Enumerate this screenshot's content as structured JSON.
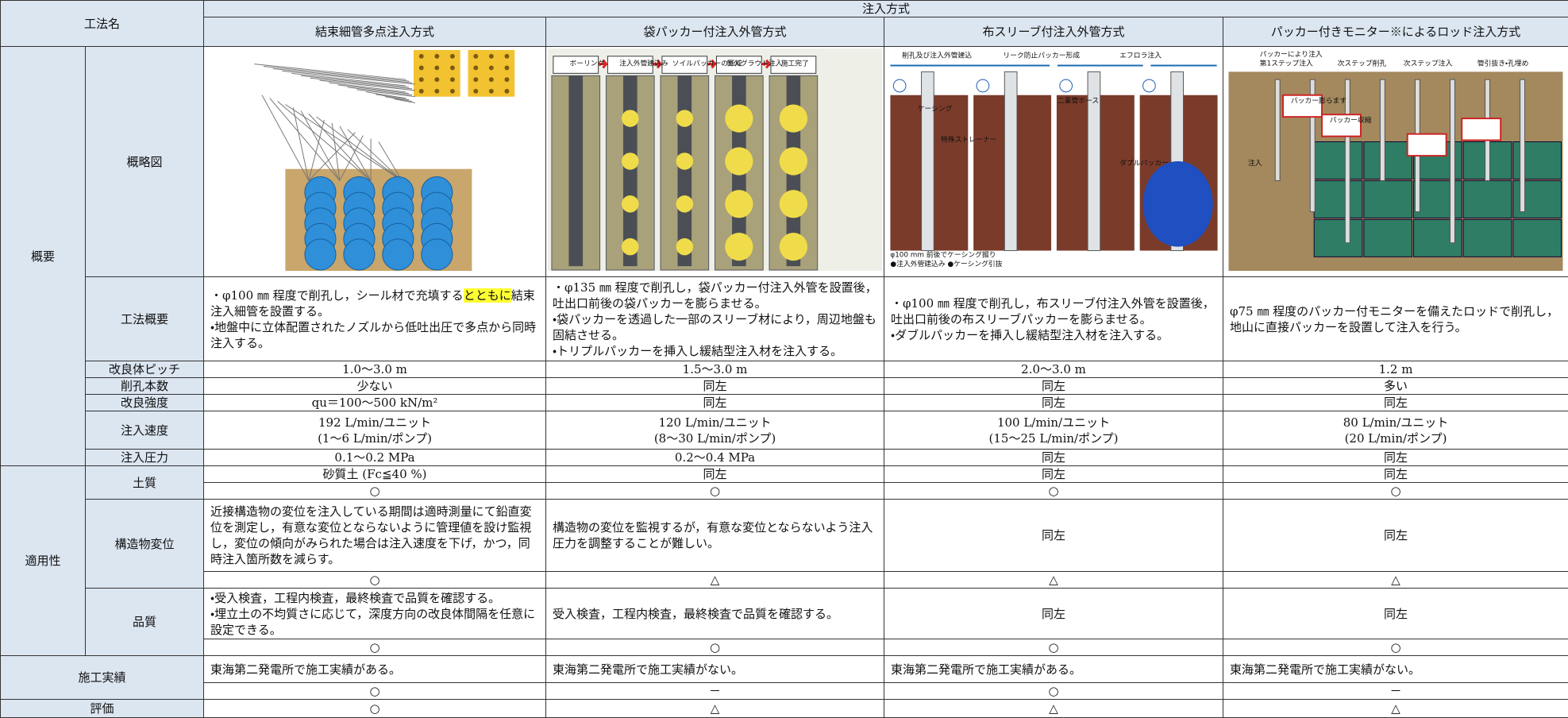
{
  "header": {
    "method_name": "工法名",
    "injection_method": "注入方式"
  },
  "methods": [
    "結束細管多点注入方式",
    "袋パッカー付注入外管方式",
    "布スリーブ付注入外管方式",
    "パッカー付きモニター※によるロッド注入方式"
  ],
  "sections": [
    {
      "label": "概要",
      "rows": [
        {
          "label": "概略図",
          "diagrams": [
            {
              "labels": []
            },
            {
              "labels": [
                "ボーリング",
                "注入外管建込み",
                "ソイルパッカーの形成",
                "恒久グラウト注入",
                "施工完了"
              ]
            },
            {
              "labels": [
                "削孔及び注入外管建込",
                "リーク防止パッカー形成",
                "エフロラ注入",
                "ケーシング",
                "特殊ストレーナー",
                "二重管ホース",
                "ダブルパッカー",
                "φ100 mm 前後でケーシング掘り",
                "●注入外管建込み ●ケーシング引抜"
              ]
            },
            {
              "labels": [
                "パッカーにより注入",
                "第1ステップ注入",
                "次ステップ削孔",
                "次ステップ注入",
                "管引抜き・孔埋め",
                "パッカー膨らます",
                "パッカー収縮",
                "注入"
              ]
            }
          ]
        },
        {
          "label": "工法概要",
          "cells": [
            [
              {
                "text": "・φ100 ㎜ 程度で削孔し，シール材で充填する",
                "highlight": "とともに",
                "rest": "結束注入細管を設置する。"
              },
              "・地盤中に立体配置されたノズルから低吐出圧で多点から同時注入する。"
            ],
            [
              "・φ135 ㎜ 程度で削孔し，袋パッカー付注入外管を設置後，吐出口前後の袋パッカーを膨らませる。",
              "・袋パッカーを透過した一部のスリーブ材により，周辺地盤も固結させる。",
              "・トリプルパッカーを挿入し緩結型注入材を注入する。"
            ],
            [
              "・φ100 ㎜ 程度で削孔し，布スリーブ付注入外管を設置後，吐出口前後の布スリーブパッカーを膨らませる。",
              "・ダブルパッカーを挿入し緩結型注入材を注入する。"
            ],
            [
              "φ75 ㎜ 程度のパッカー付モニターを備えたロッドで削孔し，地山に直接パッカーを設置して注入を行う。"
            ]
          ]
        },
        {
          "label": "改良体ピッチ",
          "cells": [
            "1.0～3.0 m",
            "1.5～3.0 m",
            "2.0～3.0 m",
            "1.2 m"
          ]
        },
        {
          "label": "削孔本数",
          "cells": [
            "少ない",
            "同左",
            "同左",
            "多い"
          ]
        },
        {
          "label": "改良強度",
          "cells": [
            "qu＝100～500 kN/m²",
            "同左",
            "同左",
            "同左"
          ]
        },
        {
          "label": "注入速度",
          "cells": [
            [
              "192 L/min/ユニット",
              "(1～6 L/min/ポンプ)"
            ],
            [
              "120 L/min/ユニット",
              "(8～30 L/min/ポンプ)"
            ],
            [
              "100 L/min/ユニット",
              "(15～25 L/min/ポンプ)"
            ],
            [
              "80 L/min/ユニット",
              "(20 L/min/ポンプ)"
            ]
          ]
        },
        {
          "label": "注入圧力",
          "cells": [
            "0.1～0.2 MPa",
            "0.2～0.4 MPa",
            "同左",
            "同左"
          ]
        }
      ]
    },
    {
      "label": "適用性",
      "rows": [
        {
          "label": "土質",
          "cells": [
            "砂質土 (Fc≦40 %)",
            "同左",
            "同左",
            "同左"
          ],
          "marks": [
            "○",
            "○",
            "○",
            "○"
          ]
        },
        {
          "label": "構造物変位",
          "cells": [
            [
              "近接構造物の変位を注入している期間は適時測量にて鉛直変位を測定し，有意な変位とならないように管理値を設け監視し，変位の傾向がみられた場合は注入速度を下げ，かつ，同時注入箇所数を減らす。"
            ],
            [
              "構造物の変位を監視するが，有意な変位とならないよう注入圧力を調整することが難しい。"
            ],
            "同左",
            "同左"
          ],
          "marks": [
            "○",
            "△",
            "△",
            "△"
          ]
        },
        {
          "label": "品質",
          "cells": [
            [
              "・受入検査，工程内検査，最終検査で品質を確認する。",
              "・埋立土の不均質さに応じて，深度方向の改良体間隔を任意に設定できる。"
            ],
            [
              "受入検査，工程内検査，最終検査で品質を確認する。"
            ],
            "同左",
            "同左"
          ],
          "marks": [
            "○",
            "○",
            "○",
            "○"
          ]
        }
      ]
    },
    {
      "label": "施工実績",
      "cells": [
        [
          "東海第二発電所で施工実績がある。"
        ],
        [
          "東海第二発電所で施工実績がない。"
        ],
        [
          "東海第二発電所で施工実績がある。"
        ],
        [
          "東海第二発電所で施工実績がない。"
        ]
      ],
      "marks": [
        "○",
        "－",
        "○",
        "－"
      ]
    },
    {
      "label": "評価",
      "marks": [
        "○",
        "△",
        "△",
        "△"
      ]
    }
  ]
}
